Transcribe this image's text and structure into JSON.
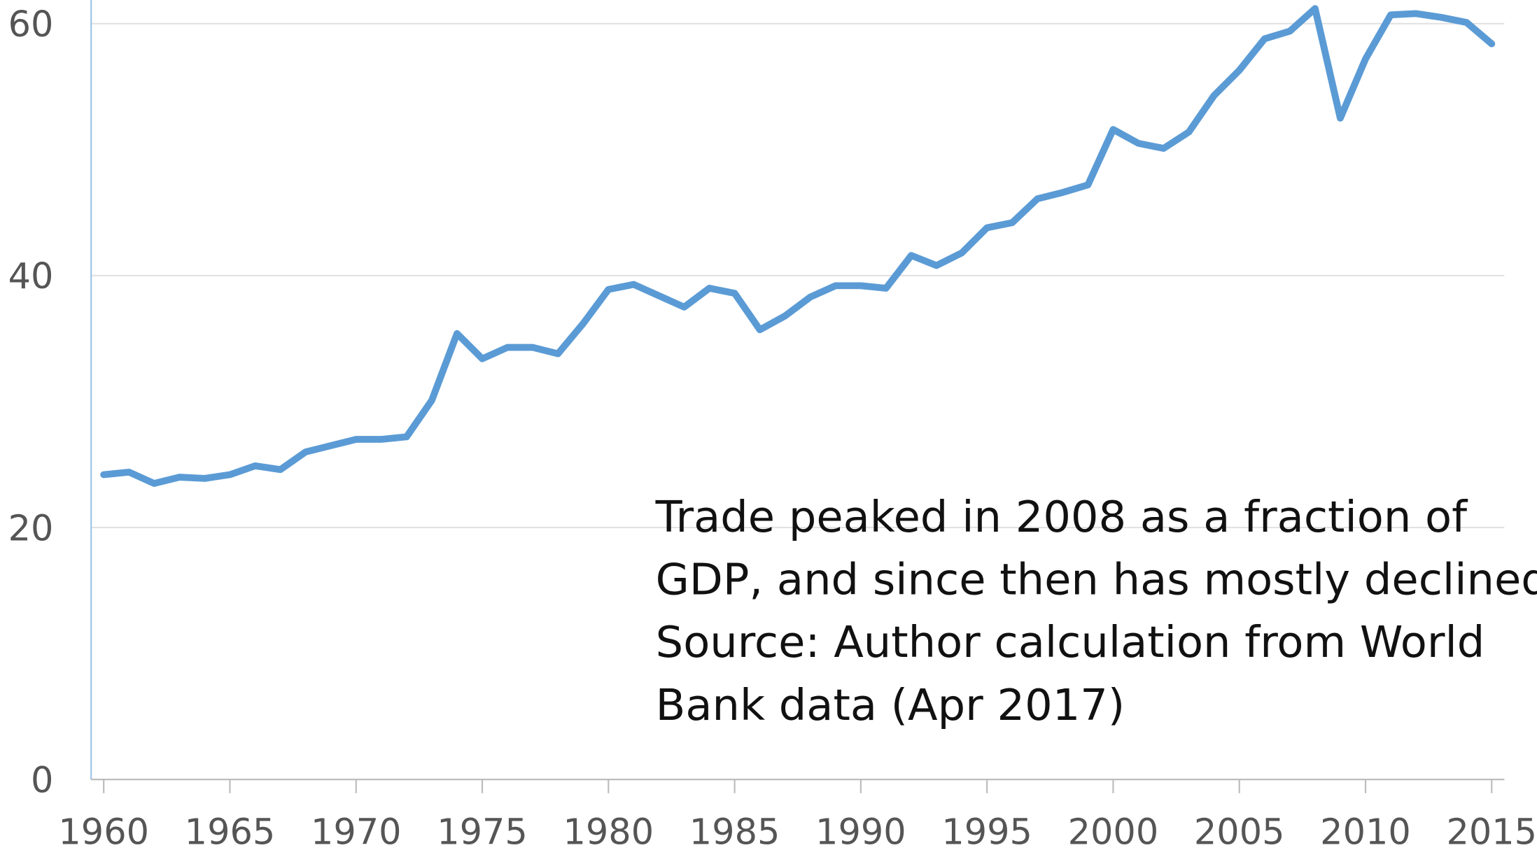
{
  "chart_data": {
    "type": "line",
    "x": [
      1960,
      1961,
      1962,
      1963,
      1964,
      1965,
      1966,
      1967,
      1968,
      1969,
      1970,
      1971,
      1972,
      1973,
      1974,
      1975,
      1976,
      1977,
      1978,
      1979,
      1980,
      1981,
      1982,
      1983,
      1984,
      1985,
      1986,
      1987,
      1988,
      1989,
      1990,
      1991,
      1992,
      1993,
      1994,
      1995,
      1996,
      1997,
      1998,
      1999,
      2000,
      2001,
      2002,
      2003,
      2004,
      2005,
      2006,
      2007,
      2008,
      2009,
      2010,
      2011,
      2012,
      2013,
      2014,
      2015
    ],
    "series": [
      {
        "name": "Trade",
        "color": "#5b9bd5",
        "values": [
          24.2,
          24.4,
          23.5,
          24.0,
          23.9,
          24.2,
          24.9,
          24.6,
          26.0,
          26.5,
          27.0,
          27.0,
          27.2,
          30.1,
          35.4,
          33.4,
          34.3,
          34.3,
          33.8,
          36.2,
          38.9,
          39.3,
          38.4,
          37.5,
          39.0,
          38.6,
          35.7,
          36.8,
          38.3,
          39.2,
          39.2,
          39.0,
          41.6,
          40.8,
          41.8,
          43.8,
          44.2,
          46.1,
          46.6,
          47.2,
          51.6,
          50.5,
          50.1,
          51.4,
          54.3,
          56.3,
          58.8,
          59.4,
          61.2,
          52.5,
          57.2,
          60.7,
          60.8,
          60.5,
          60.1,
          58.4
        ]
      }
    ],
    "xlim": [
      1959.5,
      2015.5
    ],
    "xticks": [
      1960,
      1965,
      1970,
      1975,
      1980,
      1985,
      1990,
      1995,
      2000,
      2005,
      2010,
      2015
    ],
    "ylim": [
      0,
      61.8
    ],
    "yticks": [
      0,
      20,
      40,
      60
    ],
    "grid": true,
    "annotation": [
      "Trade peaked in 2008 as a fraction of",
      "GDP, and since then has mostly declined.",
      "Source:  Author calculation from World",
      "Bank data (Apr 2017)"
    ]
  }
}
